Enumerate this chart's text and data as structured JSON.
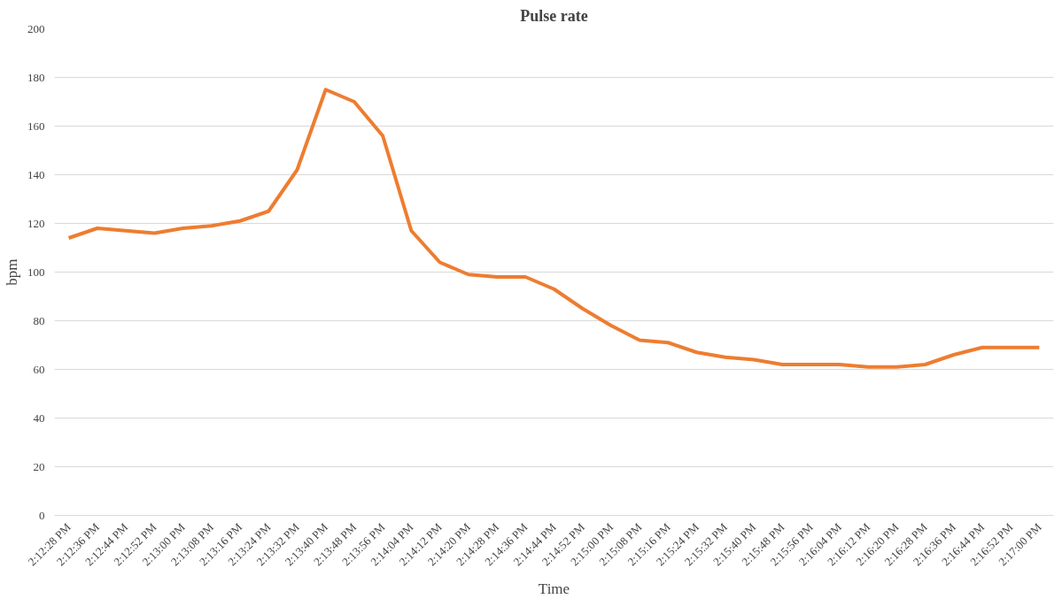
{
  "chart_data": {
    "type": "line",
    "title": "Pulse rate",
    "xlabel": "Time",
    "ylabel": "bpm",
    "categories": [
      "2:12:28 PM",
      "2:12:36 PM",
      "2:12:44 PM",
      "2:12:52 PM",
      "2:13:00 PM",
      "2:13:08 PM",
      "2:13:16 PM",
      "2:13:24 PM",
      "2:13:32 PM",
      "2:13:40 PM",
      "2:13:48 PM",
      "2:13:56 PM",
      "2:14:04 PM",
      "2:14:12 PM",
      "2:14:20 PM",
      "2:14:28 PM",
      "2:14:36 PM",
      "2:14:44 PM",
      "2:14:52 PM",
      "2:15:00 PM",
      "2:15:08 PM",
      "2:15:16 PM",
      "2:15:24 PM",
      "2:15:32 PM",
      "2:15:40 PM",
      "2:15:48 PM",
      "2:15:56 PM",
      "2:16:04 PM",
      "2:16:12 PM",
      "2:16:20 PM",
      "2:16:28 PM",
      "2:16:36 PM",
      "2:16:44 PM",
      "2:16:52 PM",
      "2:17:00 PM"
    ],
    "series": [
      {
        "color": "#ed7d31",
        "values": [
          114,
          118,
          117,
          116,
          118,
          119,
          121,
          125,
          142,
          175,
          170,
          156,
          117,
          104,
          99,
          98,
          98,
          93,
          85,
          78,
          72,
          71,
          67,
          65,
          64,
          62,
          62,
          62,
          61,
          61,
          62,
          66,
          69,
          69,
          69
        ]
      }
    ],
    "ylim": [
      0,
      200
    ],
    "yticks": [
      0,
      20,
      40,
      60,
      80,
      100,
      120,
      140,
      160,
      180,
      200
    ],
    "grid": "y",
    "marker": "none",
    "line_style": "solid"
  }
}
